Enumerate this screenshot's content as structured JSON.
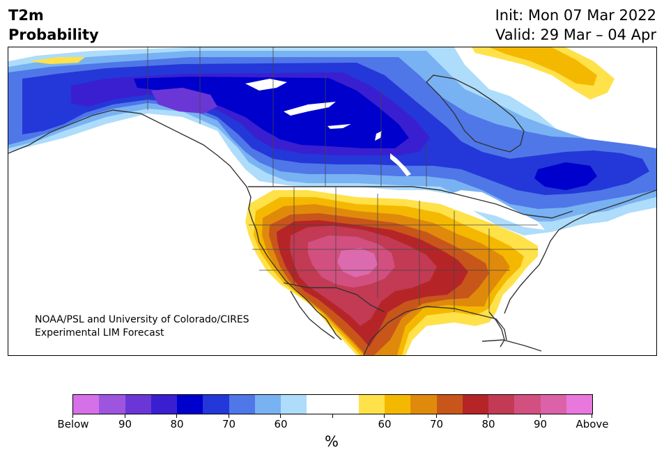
{
  "header": {
    "title_line1": "T2m",
    "title_line2": "Probability",
    "init": "Init: Mon 07 Mar 2022",
    "valid": "Valid: 29 Mar – 04 Apr"
  },
  "map": {
    "credit_line1": "NOAA/PSL and University of Colorado/CIRES",
    "credit_line2": "Experimental LIM Forecast",
    "colors": {
      "below_90": "#6a36d6",
      "below_80": "#3a1fd0",
      "below_70": "#0000cc",
      "below_60": "#2437d8",
      "below_50": "#4f77e8",
      "below_40": "#79b2f2",
      "below_30": "#aedcfb",
      "neutral": "#ffffff",
      "above_30": "#ffe14a",
      "above_40": "#f5b800",
      "above_50": "#e08a0c",
      "above_60": "#c8561a",
      "above_70": "#b52528",
      "above_80": "#c23a54",
      "above_90": "#d2507f",
      "above_max": "#dc6aae",
      "coast": "#333333",
      "lakes": "#ffffff"
    }
  },
  "colorbar": {
    "colors": [
      "#d670e8",
      "#9d55e0",
      "#6a36d6",
      "#3a1fd0",
      "#0000cc",
      "#2437d8",
      "#4f77e8",
      "#79b2f2",
      "#aedcfb",
      "#ffffff",
      "#ffffff",
      "#ffe14a",
      "#f5b800",
      "#e08a0c",
      "#c8561a",
      "#b52528",
      "#c23a54",
      "#d2507f",
      "#db62a9",
      "#e878dc"
    ],
    "ticks": [
      {
        "label": "Below"
      },
      {
        "label": "90"
      },
      {
        "label": "80"
      },
      {
        "label": "70"
      },
      {
        "label": "60"
      },
      {
        "label": ""
      },
      {
        "label": "60"
      },
      {
        "label": "70"
      },
      {
        "label": "80"
      },
      {
        "label": "90"
      },
      {
        "label": "Above"
      }
    ],
    "unit": "%"
  }
}
